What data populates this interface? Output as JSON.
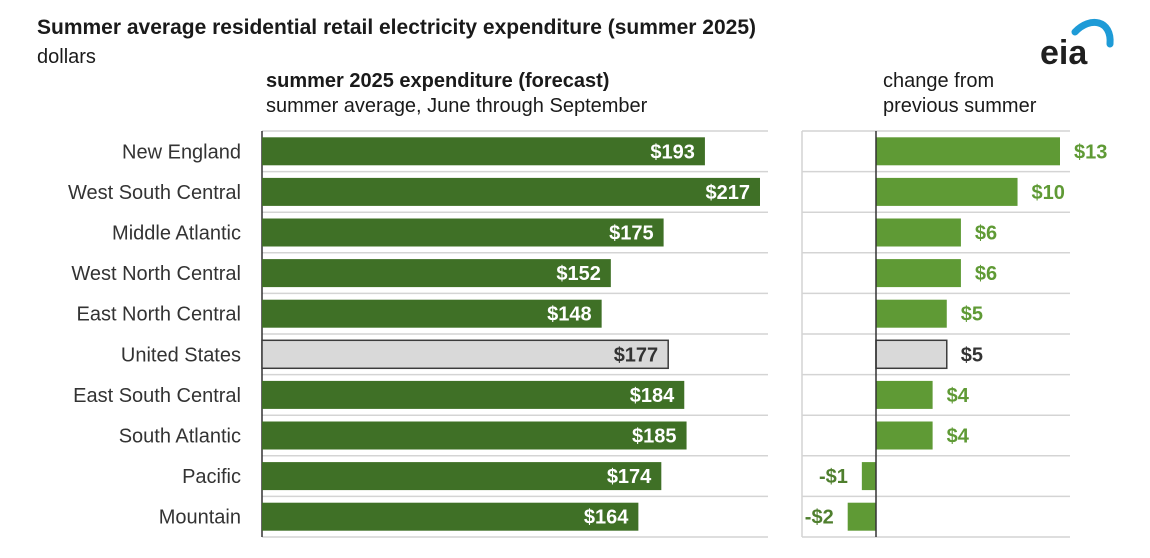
{
  "header": {
    "title": "Summer average residential retail electricity expenditure (summer 2025)",
    "units": "dollars",
    "logo_text": "eia"
  },
  "panels": {
    "left_title": "summer 2025 expenditure (forecast)",
    "left_subtitle": "summer average, June through September",
    "right_title_line1": "change from",
    "right_title_line2": "previous summer"
  },
  "colors": {
    "dark_green": "#3f7026",
    "light_green": "#5f9a35",
    "us_fill": "#d9d9d9",
    "us_stroke": "#3c3c3c",
    "grid": "#d4d4d4",
    "axis": "#333333",
    "negative_label": "#4f7f2e",
    "logo_blue": "#1e9bd7"
  },
  "chart_data": [
    {
      "type": "bar",
      "orientation": "horizontal",
      "title": "summer 2025 expenditure (forecast)",
      "subtitle": "summer average, June through September",
      "categories": [
        "New England",
        "West South Central",
        "Middle Atlantic",
        "West North Central",
        "East North Central",
        "United States",
        "East South Central",
        "South Atlantic",
        "Pacific",
        "Mountain"
      ],
      "values": [
        193,
        217,
        175,
        152,
        148,
        177,
        184,
        185,
        174,
        164
      ],
      "labels": [
        "$193",
        "$217",
        "$175",
        "$152",
        "$148",
        "$177",
        "$184",
        "$185",
        "$174",
        "$164"
      ],
      "highlight": "United States",
      "xlim": [
        0,
        220
      ],
      "grid": true
    },
    {
      "type": "bar",
      "orientation": "horizontal",
      "title": "change from previous summer",
      "categories": [
        "New England",
        "West South Central",
        "Middle Atlantic",
        "West North Central",
        "East North Central",
        "United States",
        "East South Central",
        "South Atlantic",
        "Pacific",
        "Mountain"
      ],
      "values": [
        13,
        10,
        6,
        6,
        5,
        5,
        4,
        4,
        -1,
        -2
      ],
      "labels": [
        "$13",
        "$10",
        "$6",
        "$6",
        "$5",
        "$5",
        "$4",
        "$4",
        "-$1",
        "-$2"
      ],
      "highlight": "United States",
      "xlim": [
        -3,
        13.5
      ],
      "grid": true
    }
  ]
}
